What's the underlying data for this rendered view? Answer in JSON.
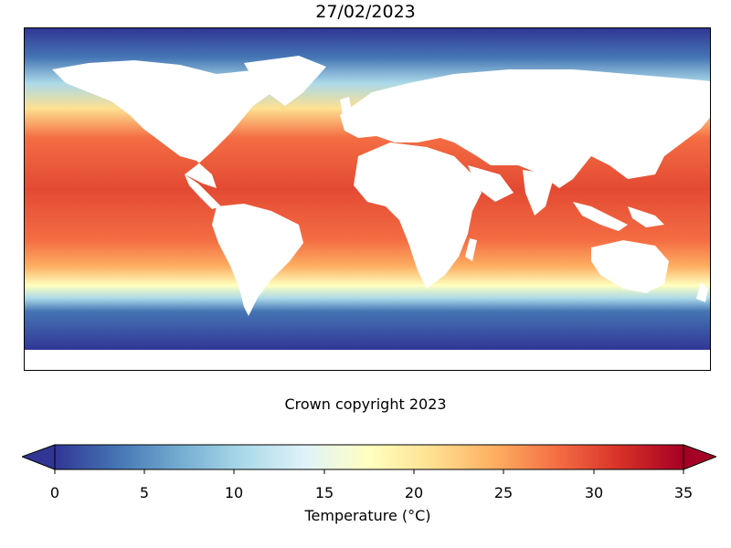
{
  "title": "27/02/2023",
  "credit": "Crown copyright 2023",
  "colorbar": {
    "label": "Temperature (°C)",
    "min": 0,
    "max": 35,
    "extend": "both",
    "ticks": [
      "0",
      "5",
      "10",
      "15",
      "20",
      "25",
      "30",
      "35"
    ],
    "colormap": "RdYlBu_r",
    "colors": [
      "#313695",
      "#4575b4",
      "#74add1",
      "#abd9e9",
      "#e0f3f8",
      "#ffffbf",
      "#fee090",
      "#fdae61",
      "#f46d43",
      "#d73027",
      "#a50026"
    ]
  },
  "map": {
    "projection": "plate carree (global)",
    "land_color": "#ffffff",
    "features": [
      "sea-surface-temperature-field",
      "continents-masked-white"
    ]
  }
}
